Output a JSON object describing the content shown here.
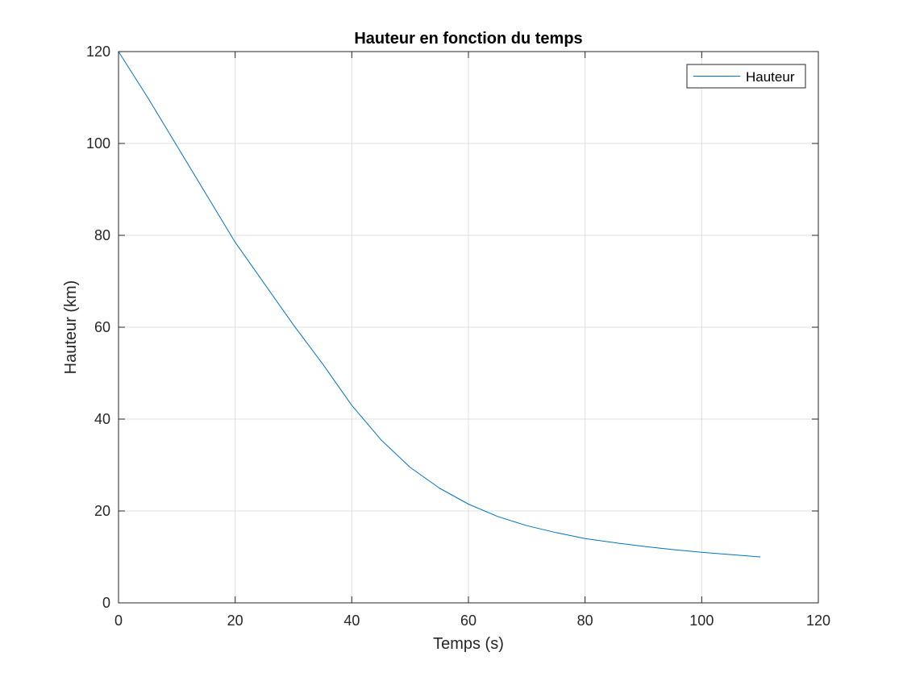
{
  "chart_data": {
    "type": "line",
    "title": "Hauteur en fonction du temps",
    "xlabel": "Temps (s)",
    "ylabel": "Hauteur (km)",
    "xlim": [
      0,
      120
    ],
    "ylim": [
      0,
      120
    ],
    "xticks": [
      0,
      20,
      40,
      60,
      80,
      100,
      120
    ],
    "yticks": [
      0,
      20,
      40,
      60,
      80,
      100,
      120
    ],
    "xtick_labels": [
      "0",
      "20",
      "40",
      "60",
      "80",
      "100",
      "120"
    ],
    "ytick_labels": [
      "0",
      "20",
      "40",
      "60",
      "80",
      "100",
      "120"
    ],
    "grid": true,
    "legend_position": "top-right",
    "series": [
      {
        "name": "Hauteur",
        "color": "#0072BD",
        "x": [
          0,
          5,
          10,
          15,
          20,
          25,
          30,
          35,
          40,
          45,
          50,
          55,
          60,
          65,
          70,
          75,
          80,
          85,
          90,
          95,
          100,
          105,
          110
        ],
        "y": [
          120,
          110,
          99.5,
          89,
          78.5,
          69.5,
          60.5,
          52,
          43,
          35.5,
          29.5,
          25,
          21.5,
          18.8,
          16.8,
          15.3,
          14,
          13.1,
          12.3,
          11.6,
          11,
          10.5,
          10
        ]
      }
    ]
  }
}
